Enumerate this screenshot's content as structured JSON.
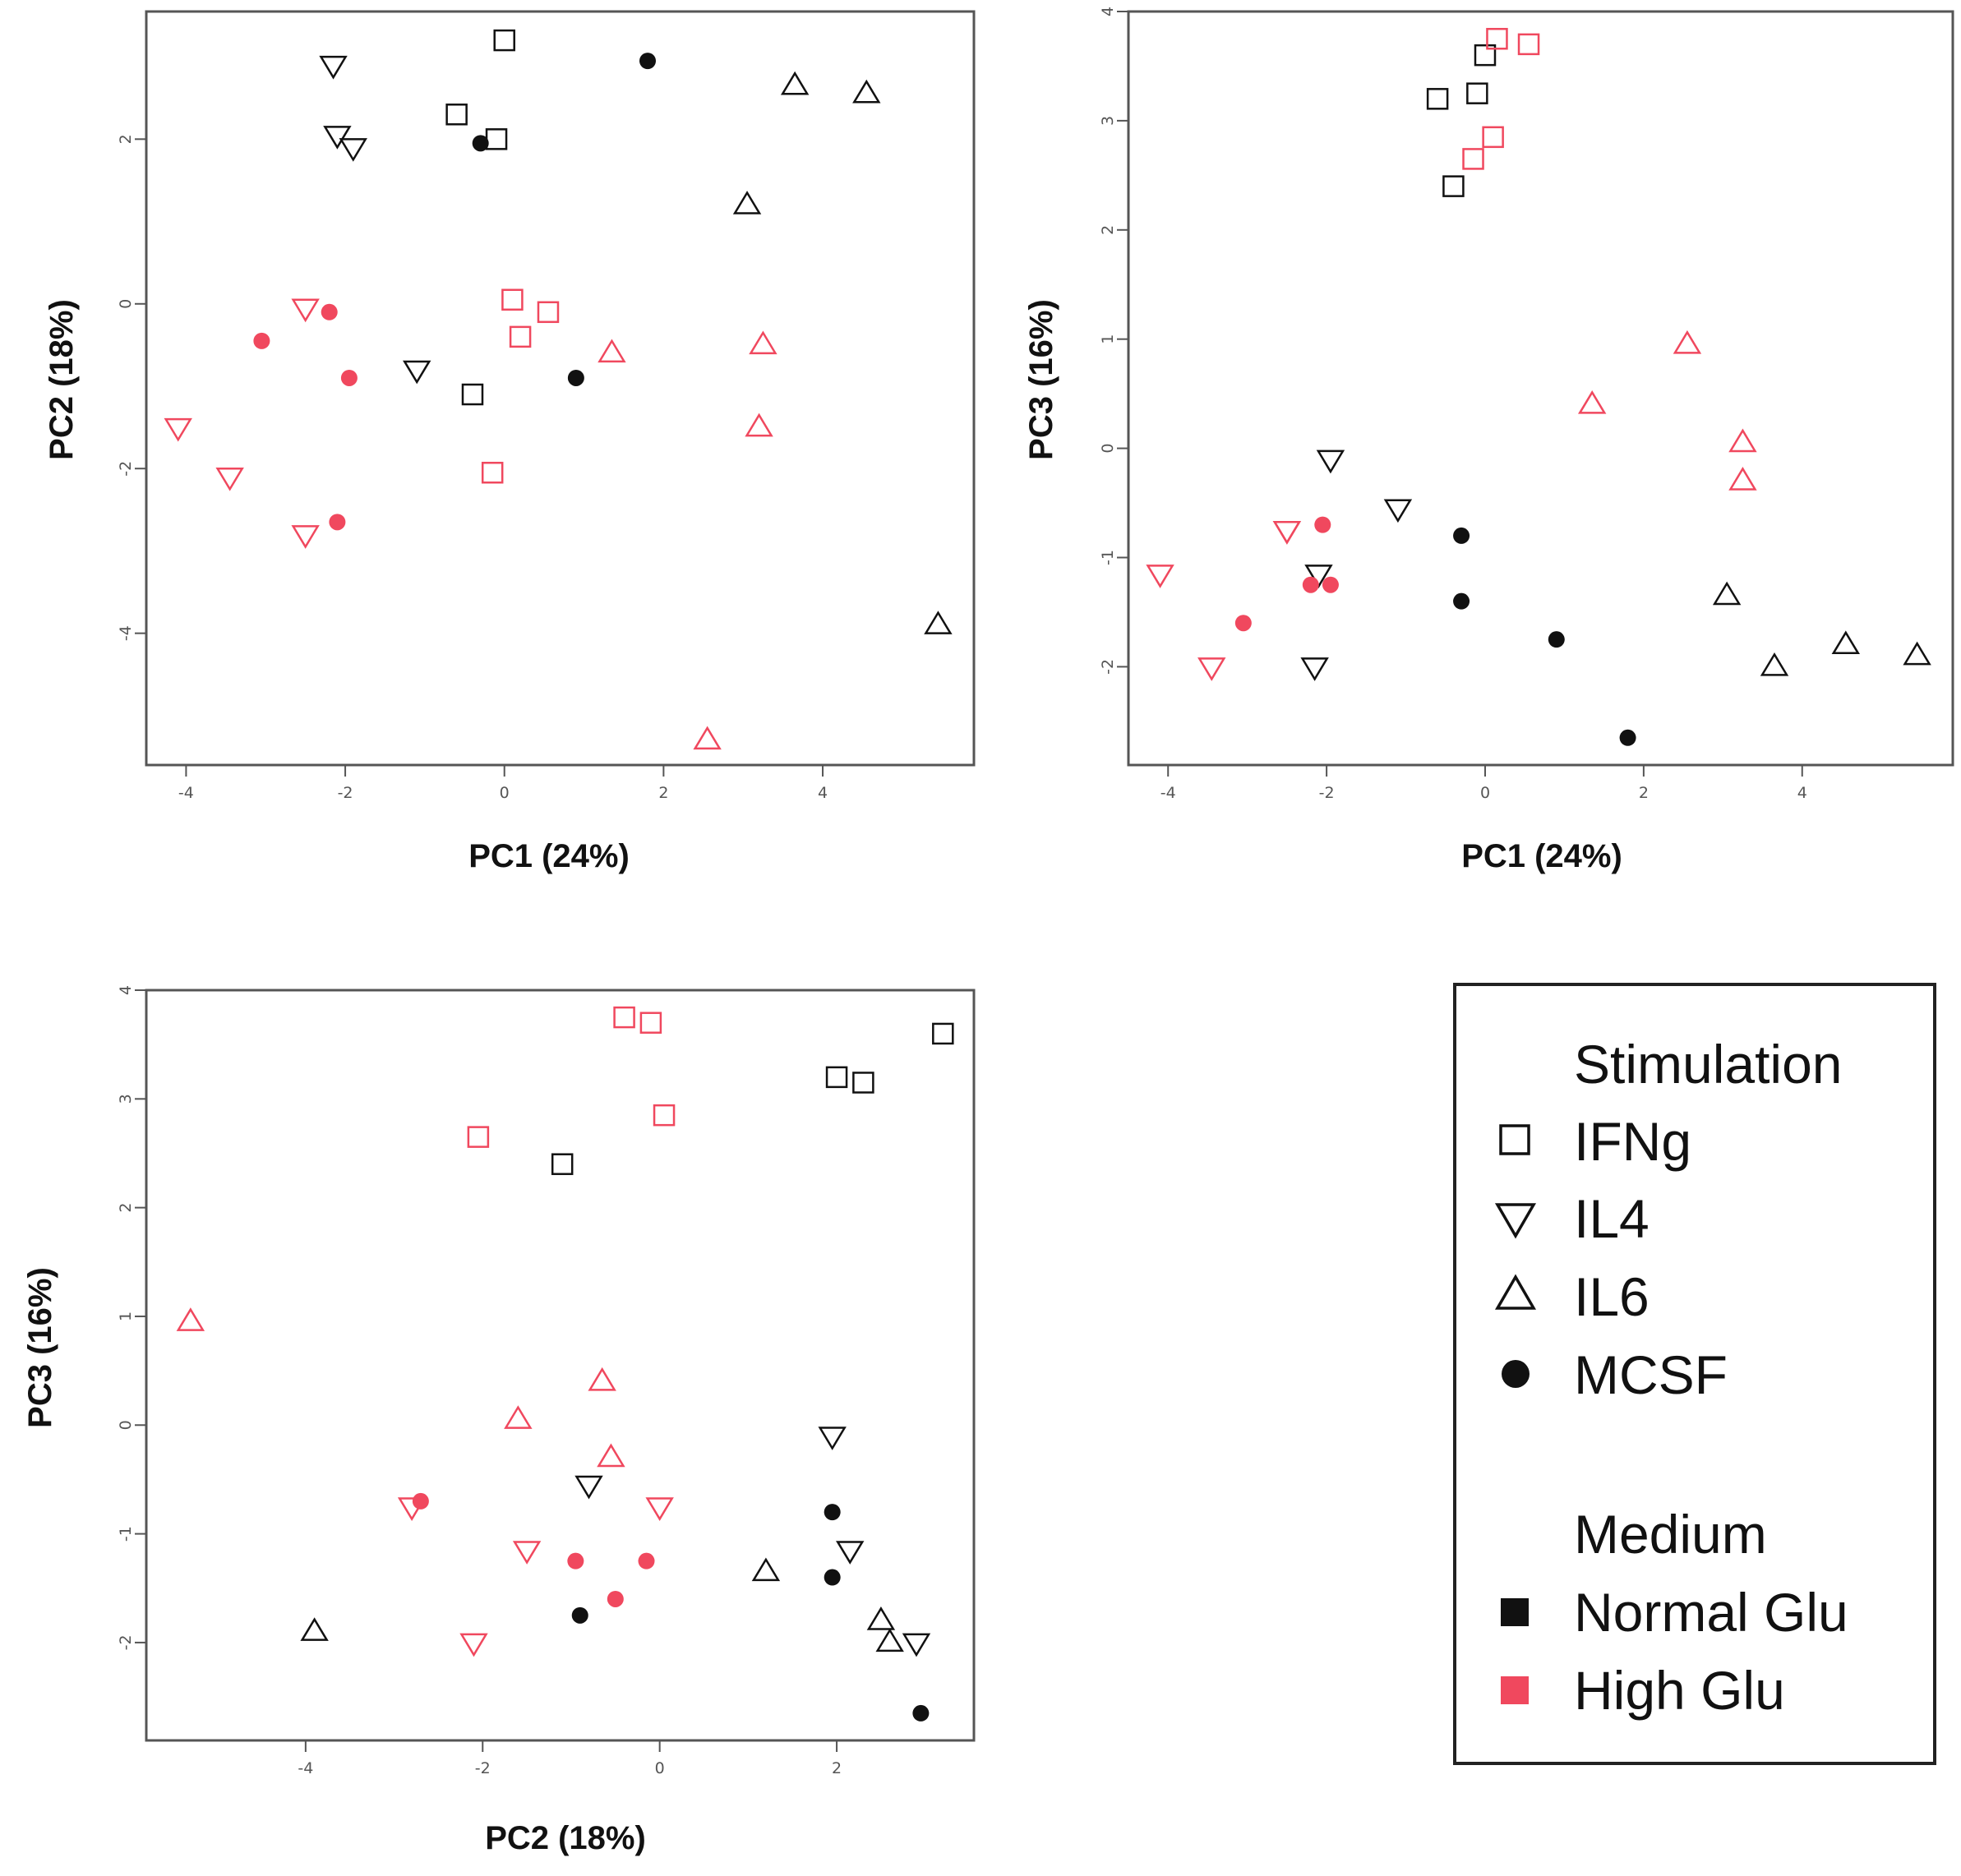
{
  "colors": {
    "normal": "#111111",
    "high": "#f0485e",
    "frame": "#555555"
  },
  "chart_data": [
    {
      "type": "scatter",
      "id": "pc1-pc2",
      "xlabel": "PC1 (24%)",
      "ylabel": "PC2 (18%)",
      "xlim": [
        -4.5,
        5.9
      ],
      "ylim": [
        -5.6,
        3.55
      ],
      "xticks": [
        -4,
        -2,
        0,
        2,
        4
      ],
      "yticks": [
        -4,
        -2,
        0,
        2
      ],
      "points": [
        {
          "x": 0.0,
          "y": 3.2,
          "stim": "IFNg",
          "medium": "Normal Glu"
        },
        {
          "x": -0.6,
          "y": 2.3,
          "stim": "IFNg",
          "medium": "Normal Glu"
        },
        {
          "x": -0.1,
          "y": 2.0,
          "stim": "IFNg",
          "medium": "Normal Glu"
        },
        {
          "x": -0.4,
          "y": -1.1,
          "stim": "IFNg",
          "medium": "Normal Glu"
        },
        {
          "x": 0.1,
          "y": 0.05,
          "stim": "IFNg",
          "medium": "High Glu"
        },
        {
          "x": 0.55,
          "y": -0.1,
          "stim": "IFNg",
          "medium": "High Glu"
        },
        {
          "x": 0.2,
          "y": -0.4,
          "stim": "IFNg",
          "medium": "High Glu"
        },
        {
          "x": -0.15,
          "y": -2.05,
          "stim": "IFNg",
          "medium": "High Glu"
        },
        {
          "x": -2.15,
          "y": 2.9,
          "stim": "IL4",
          "medium": "Normal Glu"
        },
        {
          "x": -2.1,
          "y": 2.05,
          "stim": "IL4",
          "medium": "Normal Glu"
        },
        {
          "x": -1.9,
          "y": 1.9,
          "stim": "IL4",
          "medium": "Normal Glu"
        },
        {
          "x": -1.1,
          "y": -0.8,
          "stim": "IL4",
          "medium": "Normal Glu"
        },
        {
          "x": -2.5,
          "y": -0.05,
          "stim": "IL4",
          "medium": "High Glu"
        },
        {
          "x": -4.1,
          "y": -1.5,
          "stim": "IL4",
          "medium": "High Glu"
        },
        {
          "x": -3.45,
          "y": -2.1,
          "stim": "IL4",
          "medium": "High Glu"
        },
        {
          "x": -2.5,
          "y": -2.8,
          "stim": "IL4",
          "medium": "High Glu"
        },
        {
          "x": 3.65,
          "y": 2.65,
          "stim": "IL6",
          "medium": "Normal Glu"
        },
        {
          "x": 4.55,
          "y": 2.55,
          "stim": "IL6",
          "medium": "Normal Glu"
        },
        {
          "x": 3.05,
          "y": 1.2,
          "stim": "IL6",
          "medium": "Normal Glu"
        },
        {
          "x": 5.45,
          "y": -3.9,
          "stim": "IL6",
          "medium": "Normal Glu"
        },
        {
          "x": 1.35,
          "y": -0.6,
          "stim": "IL6",
          "medium": "High Glu"
        },
        {
          "x": 3.25,
          "y": -0.5,
          "stim": "IL6",
          "medium": "High Glu"
        },
        {
          "x": 3.2,
          "y": -1.5,
          "stim": "IL6",
          "medium": "High Glu"
        },
        {
          "x": 2.55,
          "y": -5.3,
          "stim": "IL6",
          "medium": "High Glu"
        },
        {
          "x": 1.8,
          "y": 2.95,
          "stim": "MCSF",
          "medium": "Normal Glu"
        },
        {
          "x": -0.3,
          "y": 1.95,
          "stim": "MCSF",
          "medium": "Normal Glu"
        },
        {
          "x": 0.9,
          "y": -0.9,
          "stim": "MCSF",
          "medium": "Normal Glu"
        },
        {
          "x": -2.2,
          "y": -0.1,
          "stim": "MCSF",
          "medium": "High Glu"
        },
        {
          "x": -3.05,
          "y": -0.45,
          "stim": "MCSF",
          "medium": "High Glu"
        },
        {
          "x": -1.95,
          "y": -0.9,
          "stim": "MCSF",
          "medium": "High Glu"
        },
        {
          "x": -2.1,
          "y": -2.65,
          "stim": "MCSF",
          "medium": "High Glu"
        }
      ]
    },
    {
      "type": "scatter",
      "id": "pc1-pc3",
      "xlabel": "PC1 (24%)",
      "ylabel": "PC3 (16%)",
      "xlim": [
        -4.5,
        5.9
      ],
      "ylim": [
        -2.9,
        4.0
      ],
      "xticks": [
        -4,
        -2,
        0,
        2,
        4
      ],
      "yticks": [
        -2,
        -1,
        0,
        1,
        2,
        3,
        4
      ],
      "points": [
        {
          "x": 0.0,
          "y": 3.6,
          "stim": "IFNg",
          "medium": "Normal Glu"
        },
        {
          "x": -0.6,
          "y": 3.2,
          "stim": "IFNg",
          "medium": "Normal Glu"
        },
        {
          "x": -0.1,
          "y": 3.25,
          "stim": "IFNg",
          "medium": "Normal Glu"
        },
        {
          "x": -0.4,
          "y": 2.4,
          "stim": "IFNg",
          "medium": "Normal Glu"
        },
        {
          "x": 0.15,
          "y": 3.75,
          "stim": "IFNg",
          "medium": "High Glu"
        },
        {
          "x": 0.55,
          "y": 3.7,
          "stim": "IFNg",
          "medium": "High Glu"
        },
        {
          "x": 0.1,
          "y": 2.85,
          "stim": "IFNg",
          "medium": "High Glu"
        },
        {
          "x": -0.15,
          "y": 2.65,
          "stim": "IFNg",
          "medium": "High Glu"
        },
        {
          "x": -1.95,
          "y": -0.1,
          "stim": "IL4",
          "medium": "Normal Glu"
        },
        {
          "x": -1.1,
          "y": -0.55,
          "stim": "IL4",
          "medium": "Normal Glu"
        },
        {
          "x": -2.1,
          "y": -1.15,
          "stim": "IL4",
          "medium": "Normal Glu"
        },
        {
          "x": -2.15,
          "y": -2.0,
          "stim": "IL4",
          "medium": "Normal Glu"
        },
        {
          "x": -2.5,
          "y": -0.75,
          "stim": "IL4",
          "medium": "High Glu"
        },
        {
          "x": -4.1,
          "y": -1.15,
          "stim": "IL4",
          "medium": "High Glu"
        },
        {
          "x": -3.45,
          "y": -2.0,
          "stim": "IL4",
          "medium": "High Glu"
        },
        {
          "x": -2.5,
          "y": -0.75,
          "stim": "IL4",
          "medium": "High Glu"
        },
        {
          "x": 3.05,
          "y": -1.35,
          "stim": "IL6",
          "medium": "Normal Glu"
        },
        {
          "x": 3.65,
          "y": -2.0,
          "stim": "IL6",
          "medium": "Normal Glu"
        },
        {
          "x": 4.55,
          "y": -1.8,
          "stim": "IL6",
          "medium": "Normal Glu"
        },
        {
          "x": 5.45,
          "y": -1.9,
          "stim": "IL6",
          "medium": "Normal Glu"
        },
        {
          "x": 2.55,
          "y": 0.95,
          "stim": "IL6",
          "medium": "High Glu"
        },
        {
          "x": 1.35,
          "y": 0.4,
          "stim": "IL6",
          "medium": "High Glu"
        },
        {
          "x": 3.25,
          "y": 0.05,
          "stim": "IL6",
          "medium": "High Glu"
        },
        {
          "x": 3.25,
          "y": -0.3,
          "stim": "IL6",
          "medium": "High Glu"
        },
        {
          "x": -0.3,
          "y": -0.8,
          "stim": "MCSF",
          "medium": "Normal Glu"
        },
        {
          "x": -0.3,
          "y": -1.4,
          "stim": "MCSF",
          "medium": "Normal Glu"
        },
        {
          "x": 0.9,
          "y": -1.75,
          "stim": "MCSF",
          "medium": "Normal Glu"
        },
        {
          "x": 1.8,
          "y": -2.65,
          "stim": "MCSF",
          "medium": "Normal Glu"
        },
        {
          "x": -2.05,
          "y": -0.7,
          "stim": "MCSF",
          "medium": "High Glu"
        },
        {
          "x": -2.2,
          "y": -1.25,
          "stim": "MCSF",
          "medium": "High Glu"
        },
        {
          "x": -1.95,
          "y": -1.25,
          "stim": "MCSF",
          "medium": "High Glu"
        },
        {
          "x": -3.05,
          "y": -1.6,
          "stim": "MCSF",
          "medium": "High Glu"
        }
      ]
    },
    {
      "type": "scatter",
      "id": "pc2-pc3",
      "xlabel": "PC2 (18%)",
      "ylabel": "PC3 (16%)",
      "xlim": [
        -5.8,
        3.55
      ],
      "ylim": [
        -2.9,
        4.0
      ],
      "xticks": [
        -4,
        -2,
        0,
        2
      ],
      "yticks": [
        -2,
        -1,
        0,
        1,
        2,
        3,
        4
      ],
      "points": [
        {
          "x": 3.2,
          "y": 3.6,
          "stim": "IFNg",
          "medium": "Normal Glu"
        },
        {
          "x": 2.0,
          "y": 3.2,
          "stim": "IFNg",
          "medium": "Normal Glu"
        },
        {
          "x": 2.3,
          "y": 3.15,
          "stim": "IFNg",
          "medium": "Normal Glu"
        },
        {
          "x": -1.1,
          "y": 2.4,
          "stim": "IFNg",
          "medium": "Normal Glu"
        },
        {
          "x": -0.4,
          "y": 3.75,
          "stim": "IFNg",
          "medium": "High Glu"
        },
        {
          "x": -0.1,
          "y": 3.7,
          "stim": "IFNg",
          "medium": "High Glu"
        },
        {
          "x": 0.05,
          "y": 2.85,
          "stim": "IFNg",
          "medium": "High Glu"
        },
        {
          "x": -2.05,
          "y": 2.65,
          "stim": "IFNg",
          "medium": "High Glu"
        },
        {
          "x": 1.95,
          "y": -0.1,
          "stim": "IL4",
          "medium": "Normal Glu"
        },
        {
          "x": -0.8,
          "y": -0.55,
          "stim": "IL4",
          "medium": "Normal Glu"
        },
        {
          "x": 2.15,
          "y": -1.15,
          "stim": "IL4",
          "medium": "Normal Glu"
        },
        {
          "x": 2.9,
          "y": -2.0,
          "stim": "IL4",
          "medium": "Normal Glu"
        },
        {
          "x": -2.8,
          "y": -0.75,
          "stim": "IL4",
          "medium": "High Glu"
        },
        {
          "x": -1.5,
          "y": -1.15,
          "stim": "IL4",
          "medium": "High Glu"
        },
        {
          "x": -2.1,
          "y": -2.0,
          "stim": "IL4",
          "medium": "High Glu"
        },
        {
          "x": 0.0,
          "y": -0.75,
          "stim": "IL4",
          "medium": "High Glu"
        },
        {
          "x": -3.9,
          "y": -1.9,
          "stim": "IL6",
          "medium": "Normal Glu"
        },
        {
          "x": 1.2,
          "y": -1.35,
          "stim": "IL6",
          "medium": "Normal Glu"
        },
        {
          "x": 2.5,
          "y": -1.8,
          "stim": "IL6",
          "medium": "Normal Glu"
        },
        {
          "x": 2.6,
          "y": -2.0,
          "stim": "IL6",
          "medium": "Normal Glu"
        },
        {
          "x": -5.3,
          "y": 0.95,
          "stim": "IL6",
          "medium": "High Glu"
        },
        {
          "x": -0.65,
          "y": 0.4,
          "stim": "IL6",
          "medium": "High Glu"
        },
        {
          "x": -1.6,
          "y": 0.05,
          "stim": "IL6",
          "medium": "High Glu"
        },
        {
          "x": -0.55,
          "y": -0.3,
          "stim": "IL6",
          "medium": "High Glu"
        },
        {
          "x": 1.95,
          "y": -0.8,
          "stim": "MCSF",
          "medium": "Normal Glu"
        },
        {
          "x": 1.95,
          "y": -1.4,
          "stim": "MCSF",
          "medium": "Normal Glu"
        },
        {
          "x": -0.9,
          "y": -1.75,
          "stim": "MCSF",
          "medium": "Normal Glu"
        },
        {
          "x": 2.95,
          "y": -2.65,
          "stim": "MCSF",
          "medium": "Normal Glu"
        },
        {
          "x": -2.7,
          "y": -0.7,
          "stim": "MCSF",
          "medium": "High Glu"
        },
        {
          "x": -0.95,
          "y": -1.25,
          "stim": "MCSF",
          "medium": "High Glu"
        },
        {
          "x": -0.15,
          "y": -1.25,
          "stim": "MCSF",
          "medium": "High Glu"
        },
        {
          "x": -0.5,
          "y": -1.6,
          "stim": "MCSF",
          "medium": "High Glu"
        }
      ]
    }
  ],
  "legend": {
    "stimulation_title": "Stimulation",
    "stimulation_items": [
      {
        "label": "IFNg",
        "icon": "square-icon"
      },
      {
        "label": "IL4",
        "icon": "triangle-down-icon"
      },
      {
        "label": "IL6",
        "icon": "triangle-up-icon"
      },
      {
        "label": "MCSF",
        "icon": "circle-icon"
      }
    ],
    "medium_title": "Medium",
    "medium_items": [
      {
        "label": "Normal Glu",
        "color": "#111111"
      },
      {
        "label": "High Glu",
        "color": "#f0485e"
      }
    ]
  }
}
